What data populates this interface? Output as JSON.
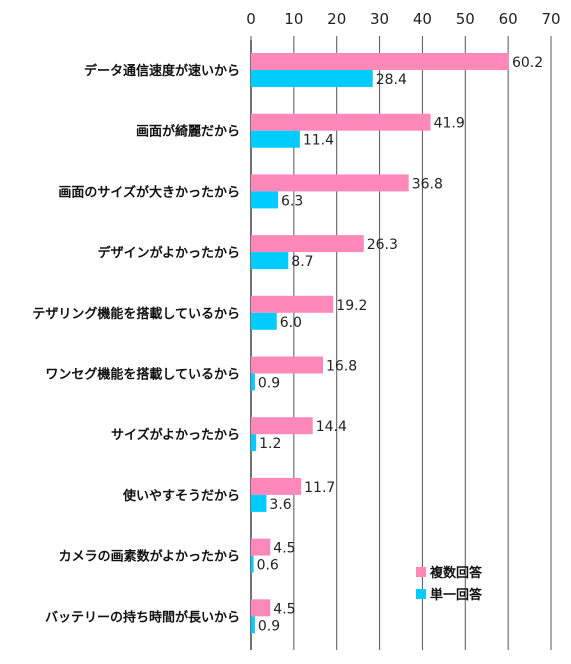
{
  "chart_data": {
    "type": "bar",
    "orientation": "horizontal",
    "categories": [
      "データ通信速度が速いから",
      "画面が綺麗だから",
      "画面のサイズが大きかったから",
      "デザインがよかったから",
      "テザリング機能を搭載しているから",
      "ワンセグ機能を搭載しているから",
      "サイズがよかったから",
      "使いやすそうだから",
      "カメラの画素数がよかったから",
      "バッテリーの持ち時間が長いから"
    ],
    "series": [
      {
        "name": "複数回答",
        "color": "#ff88bb",
        "values": [
          60.2,
          41.9,
          36.8,
          26.3,
          19.2,
          16.8,
          14.4,
          11.7,
          4.5,
          4.5
        ]
      },
      {
        "name": "単一回答",
        "color": "#00ccff",
        "values": [
          28.4,
          11.4,
          6.3,
          8.7,
          6.0,
          0.9,
          1.2,
          3.6,
          0.6,
          0.9
        ]
      }
    ],
    "xlim": [
      0,
      70
    ],
    "xticks": [
      0,
      10,
      20,
      30,
      40,
      50,
      60,
      70
    ],
    "axis_position": "top",
    "grid": true,
    "legend_position": "bottom-right"
  }
}
